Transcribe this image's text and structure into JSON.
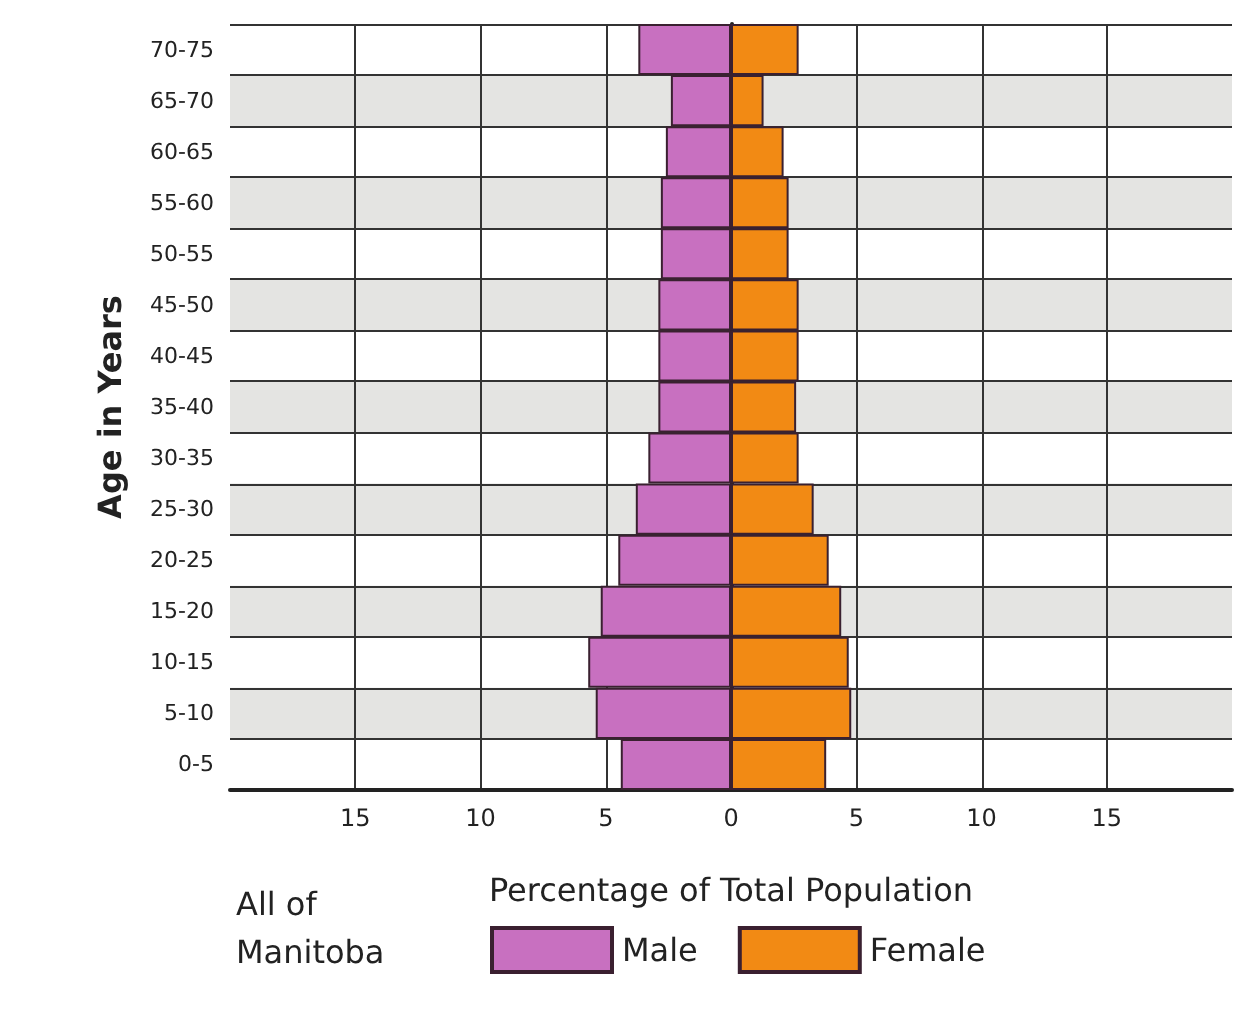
{
  "chart_data": {
    "type": "bar",
    "orientation": "horizontal",
    "stacked": true,
    "xlabel": "Percentage of Total Population",
    "ylabel": "Age in Years",
    "annotations": [
      "All of Manitoba"
    ],
    "categories": [
      "70-75",
      "65-70",
      "60-65",
      "55-60",
      "50-55",
      "45-50",
      "40-45",
      "35-40",
      "30-35",
      "25-30",
      "20-25",
      "15-20",
      "10-15",
      "5-10",
      "0-5"
    ],
    "series": [
      {
        "name": "Male",
        "color": "#c870c0",
        "values": [
          -3.7,
          -2.4,
          -2.6,
          -2.8,
          -2.8,
          -2.9,
          -2.9,
          -2.9,
          -3.3,
          -3.8,
          -4.5,
          -5.2,
          -5.7,
          -5.4,
          -4.4
        ]
      },
      {
        "name": "Female",
        "color": "#f28a14",
        "values": [
          2.7,
          1.3,
          2.1,
          2.3,
          2.3,
          2.7,
          2.7,
          2.6,
          2.7,
          3.3,
          3.9,
          4.4,
          4.7,
          4.8,
          3.8
        ]
      }
    ],
    "xlim": [
      -20,
      20
    ],
    "xticks": [
      {
        "value": -15,
        "label": "15"
      },
      {
        "value": -10,
        "label": "10"
      },
      {
        "value": -5,
        "label": "5"
      },
      0,
      5,
      10,
      15
    ],
    "grid": true,
    "legend": "bottom"
  }
}
